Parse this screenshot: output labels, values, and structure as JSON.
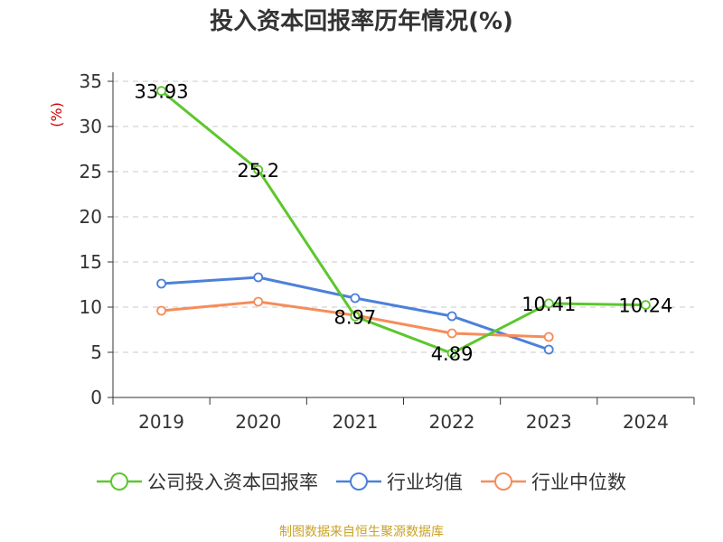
{
  "chart_data": {
    "type": "line",
    "title": "投入资本回报率历年情况(%)",
    "ylabel": "(%)",
    "ylim": [
      0,
      35
    ],
    "yticks": [
      0,
      5,
      10,
      15,
      20,
      25,
      30,
      35
    ],
    "grid": true,
    "legend_position": "bottom",
    "categories": [
      "2019",
      "2020",
      "2021",
      "2022",
      "2023",
      "2024"
    ],
    "series": [
      {
        "name": "公司投入资本回报率",
        "color": "#5cc72d",
        "values": [
          33.93,
          25.2,
          8.97,
          4.89,
          10.41,
          10.24
        ],
        "labels": [
          "33.93",
          "25.2",
          "8.97",
          "4.89",
          "10.41",
          "10.24"
        ]
      },
      {
        "name": "行业均值",
        "color": "#4d80d9",
        "values": [
          12.6,
          13.3,
          11.0,
          9.0,
          5.3,
          null
        ]
      },
      {
        "name": "行业中位数",
        "color": "#f58d5b",
        "values": [
          9.6,
          10.6,
          9.1,
          7.1,
          6.7,
          null
        ]
      }
    ]
  },
  "source": "制图数据来自恒生聚源数据库"
}
